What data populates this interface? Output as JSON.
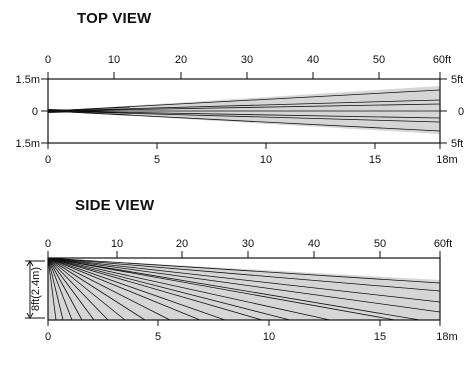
{
  "top_view": {
    "title": "TOP VIEW",
    "feet_ticks": [
      "0",
      "10",
      "20",
      "30",
      "40",
      "50",
      "60ft"
    ],
    "meter_ticks": [
      "0",
      "5",
      "10",
      "15",
      "18m"
    ],
    "left_labels": [
      "1.5m",
      "0",
      "1.5m"
    ],
    "right_labels": [
      "5ft",
      "0",
      "5ft"
    ]
  },
  "side_view": {
    "title": "SIDE VIEW",
    "feet_ticks": [
      "0",
      "10",
      "20",
      "30",
      "40",
      "50",
      "60ft"
    ],
    "meter_ticks": [
      "0",
      "5",
      "10",
      "15",
      "18m"
    ],
    "height_label": "8ft(2.4m)"
  },
  "colors": {
    "fill": "#d6d6d6",
    "line": "#111111"
  }
}
